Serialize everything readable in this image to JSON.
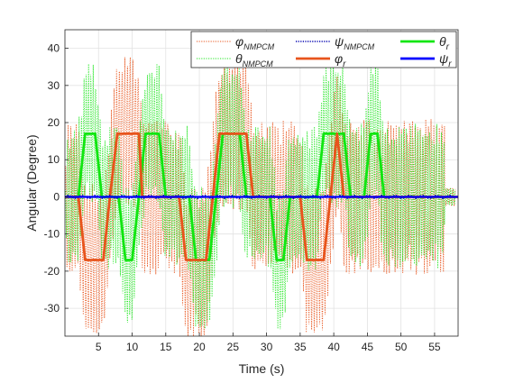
{
  "chart_data": {
    "type": "line",
    "title": "",
    "xlabel": "Time (s)",
    "ylabel": "Angular (Degree)",
    "xlim": [
      0,
      58.5
    ],
    "ylim": [
      -37.5,
      45
    ],
    "xticks": [
      5,
      10,
      15,
      20,
      25,
      30,
      35,
      40,
      45,
      50,
      55
    ],
    "yticks": [
      -30,
      -20,
      -10,
      0,
      10,
      20,
      30,
      40
    ],
    "grid": true,
    "legend_position": "top-right",
    "series": [
      {
        "key": "phi_nmpcm",
        "name": "φ",
        "sub": "NMPCM",
        "color": "#E8541C",
        "style": "dotted",
        "amplitude_deg": 22,
        "oscillation_period_s": 0.4
      },
      {
        "key": "theta_nmpcm",
        "name": "θ",
        "sub": "NMPCM",
        "color": "#22E622",
        "style": "dotted",
        "amplitude_deg": 20,
        "oscillation_period_s": 0.35
      },
      {
        "key": "psi_nmpcm",
        "name": "ψ",
        "sub": "NMPCM",
        "color": "#0000B0",
        "style": "dotted",
        "amplitude_deg": 0.4
      },
      {
        "key": "phi_r",
        "name": "φ",
        "sub": "r",
        "color": "#E8541C",
        "style": "solid",
        "x": [
          0,
          1.0,
          2.0,
          3.0,
          5.7,
          6.7,
          7.8,
          8.8,
          11.0,
          11.5,
          15.0,
          16.0,
          17.0,
          18.0,
          21.0,
          22.0,
          23.0,
          24.0,
          27.0,
          28.0,
          35.0,
          36.0,
          38.5,
          39.5,
          40.5,
          41.5,
          58.5
        ],
        "y": [
          0,
          0,
          0,
          -17,
          -17,
          0,
          17,
          17,
          17,
          0,
          0,
          0,
          0,
          -17,
          -17,
          0,
          17,
          17,
          17,
          0,
          0,
          -17,
          -17,
          0,
          17,
          0,
          0
        ]
      },
      {
        "key": "theta_r",
        "name": "θ",
        "sub": "r",
        "color": "#11E611",
        "style": "solid",
        "x": [
          0,
          1.0,
          2.0,
          3.0,
          4.5,
          5.5,
          6.5,
          7.5,
          8.0,
          9.0,
          10.0,
          11.0,
          12.0,
          13.0,
          14.0,
          15.0,
          16.5,
          17.5,
          18.5,
          19.5,
          21.5,
          22.5,
          23.5,
          24.5,
          26.0,
          27.0,
          28.0,
          29.0,
          30.5,
          31.5,
          32.5,
          33.5,
          36.5,
          37.5,
          38.5,
          39.5,
          41.5,
          42.5,
          43.5,
          44.5,
          45.5,
          46.5,
          47.5,
          48.5,
          58.5
        ],
        "y": [
          0,
          0,
          0,
          17,
          17,
          0,
          0,
          0,
          0,
          -17,
          -17,
          0,
          17,
          17,
          17,
          0,
          0,
          0,
          0,
          -17,
          -17,
          0,
          17,
          17,
          17,
          0,
          0,
          0,
          0,
          -17,
          -17,
          0,
          0,
          0,
          17,
          17,
          17,
          0,
          0,
          0,
          17,
          17,
          0,
          0,
          0
        ]
      },
      {
        "key": "psi_r",
        "name": "ψ",
        "sub": "r",
        "color": "#0000FF",
        "style": "solid",
        "x": [
          0,
          58.5
        ],
        "y": [
          0,
          0
        ]
      }
    ]
  }
}
